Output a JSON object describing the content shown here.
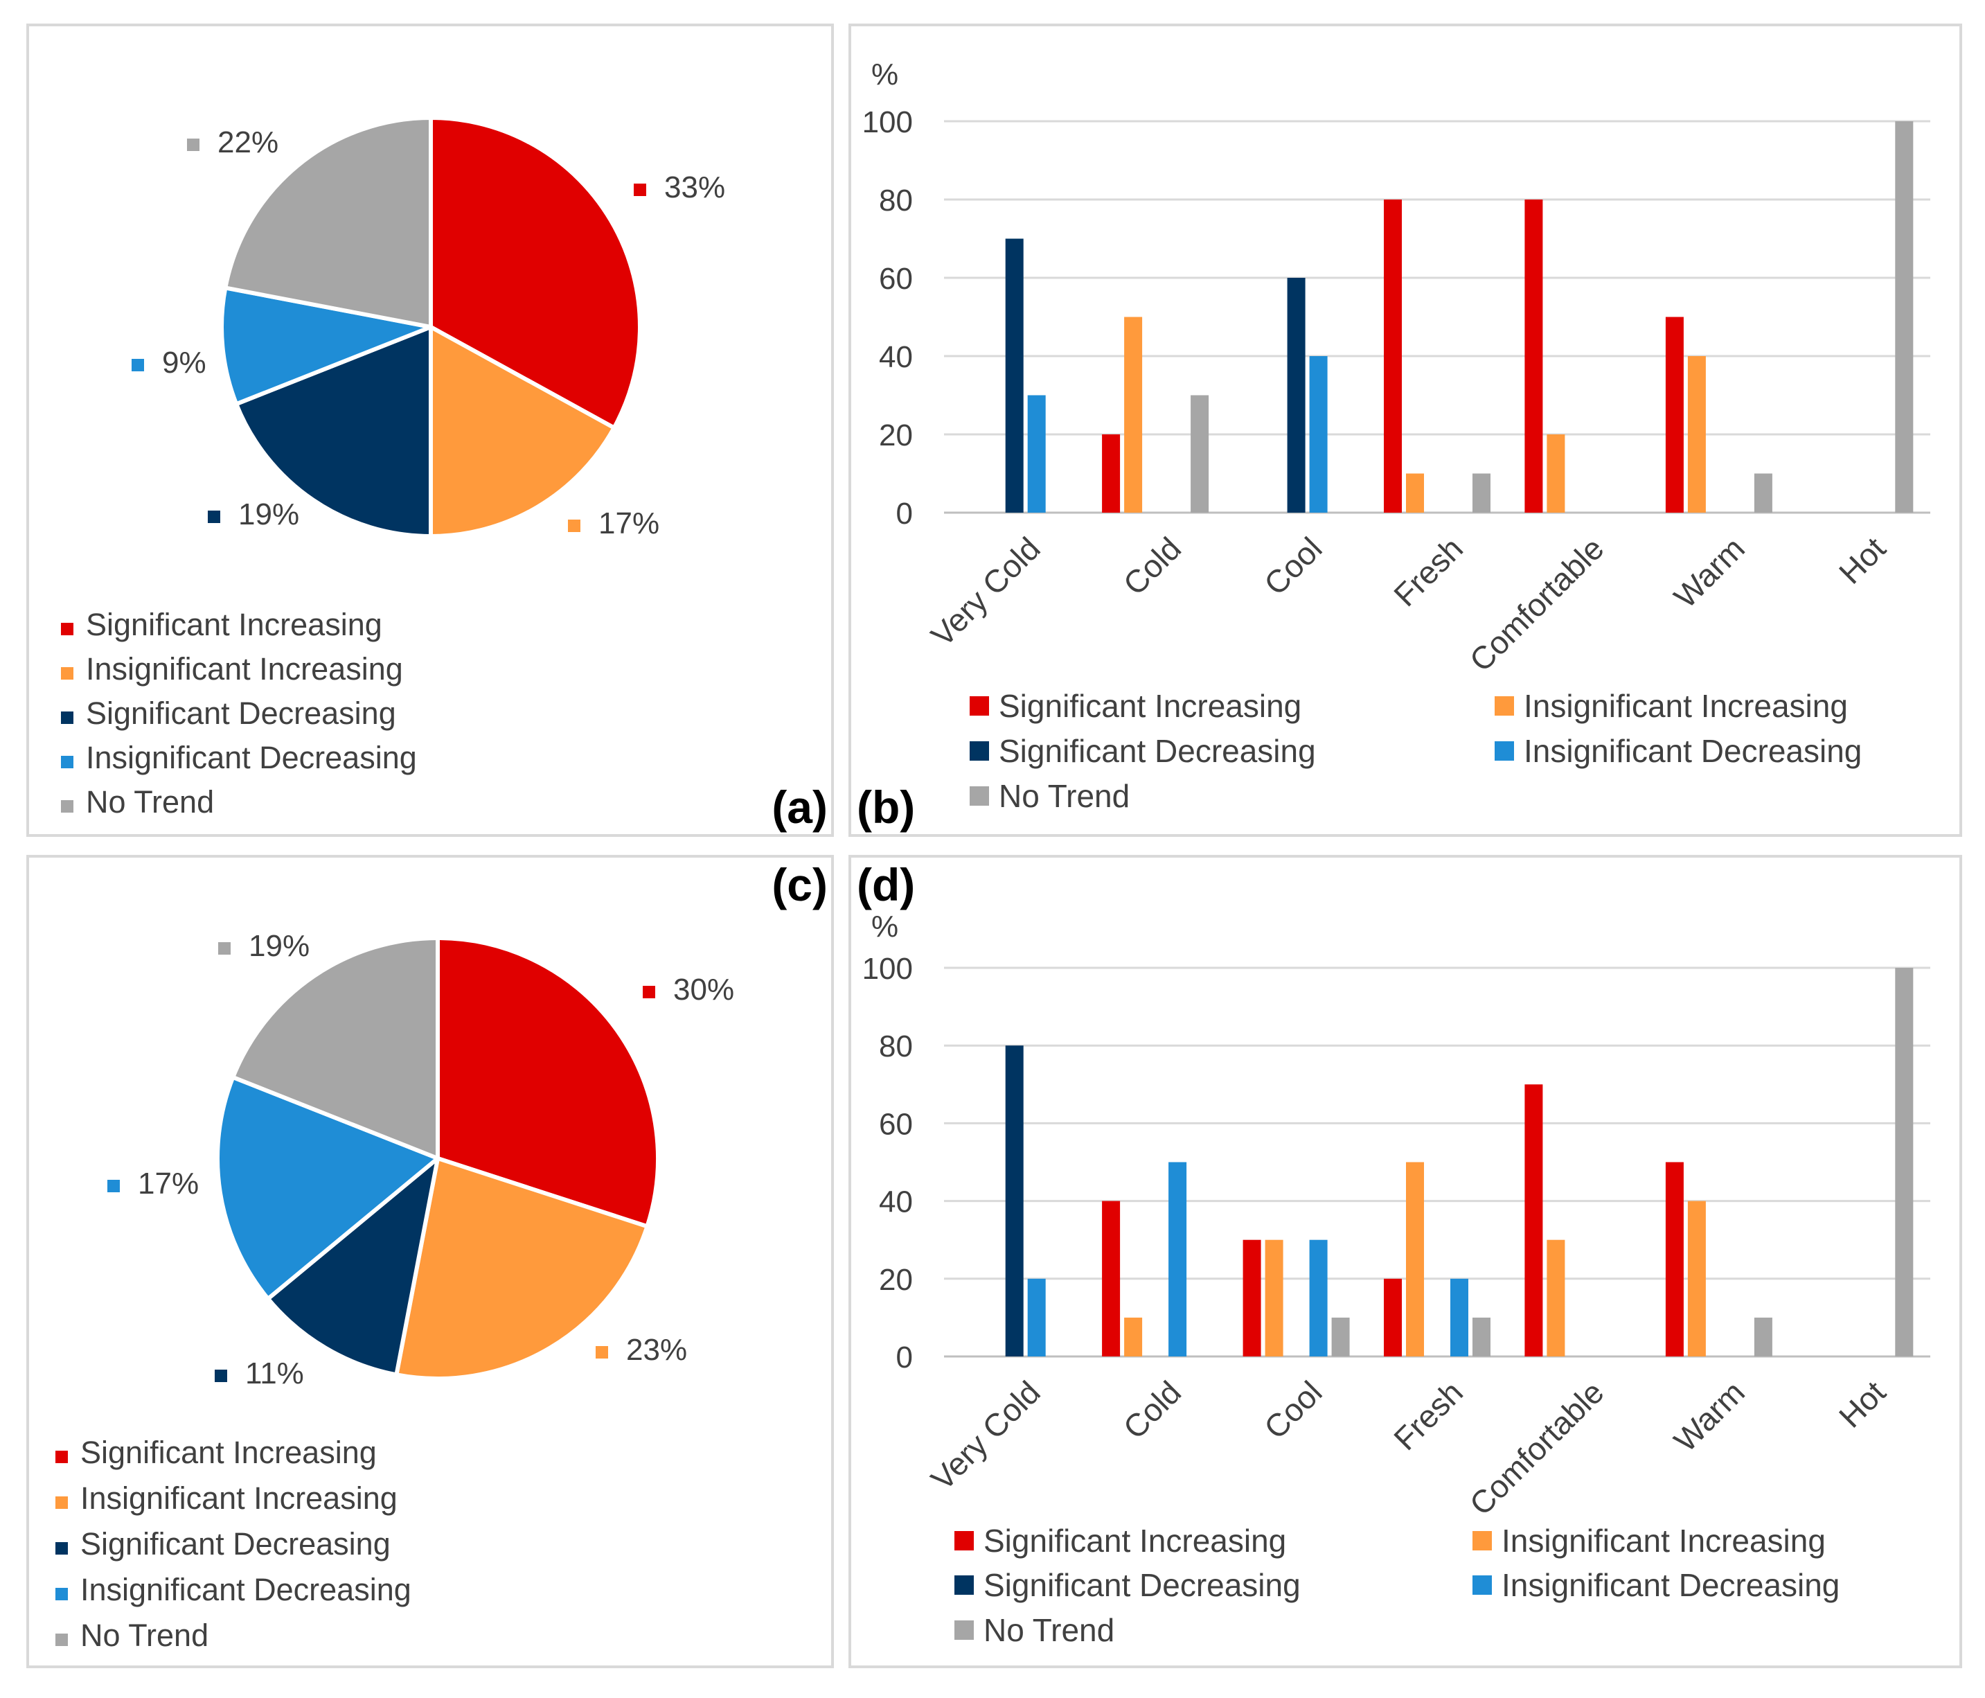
{
  "colors": {
    "significant_increasing": "#E00000",
    "insignificant_increasing": "#FF9A3C",
    "significant_decreasing": "#003461",
    "insignificant_decreasing": "#1F8DD6",
    "no_trend": "#A6A6A6",
    "grid": "#D9D9D9",
    "axis_text": "#404040",
    "frame": "#D9D9D9"
  },
  "legend_labels": [
    "Significant Increasing",
    "Insignificant Increasing",
    "Significant Decreasing",
    "Insignificant Decreasing",
    "No Trend"
  ],
  "chart_data": [
    {
      "id": "a",
      "type": "pie",
      "panel_label": "(a)",
      "slices": [
        {
          "name": "Significant Increasing",
          "value": 33,
          "label": "33%"
        },
        {
          "name": "Insignificant Increasing",
          "value": 17,
          "label": "17%"
        },
        {
          "name": "Significant Decreasing",
          "value": 19,
          "label": "19%"
        },
        {
          "name": "Insignificant Decreasing",
          "value": 9,
          "label": "9%"
        },
        {
          "name": "No Trend",
          "value": 22,
          "label": "22%"
        }
      ],
      "legend": [
        "Significant Increasing",
        "Insignificant Increasing",
        "Significant Decreasing",
        "Insignificant Decreasing",
        "No Trend"
      ]
    },
    {
      "id": "b",
      "type": "bar",
      "panel_label": "(b)",
      "ylabel": "%",
      "ylim": [
        0,
        100
      ],
      "yticks": [
        0,
        20,
        40,
        60,
        80,
        100
      ],
      "categories": [
        "Very Cold",
        "Cold",
        "Cool",
        "Fresh",
        "Comfortable",
        "Warm",
        "Hot"
      ],
      "series": [
        {
          "name": "Significant Increasing",
          "values": [
            0,
            20,
            0,
            80,
            80,
            50,
            0
          ]
        },
        {
          "name": "Insignificant Increasing",
          "values": [
            0,
            50,
            0,
            10,
            20,
            40,
            0
          ]
        },
        {
          "name": "Significant Decreasing",
          "values": [
            70,
            0,
            60,
            0,
            0,
            0,
            0
          ]
        },
        {
          "name": "Insignificant Decreasing",
          "values": [
            30,
            0,
            40,
            0,
            0,
            0,
            0
          ]
        },
        {
          "name": "No Trend",
          "values": [
            0,
            30,
            0,
            10,
            0,
            10,
            100
          ]
        }
      ]
    },
    {
      "id": "c",
      "type": "pie",
      "panel_label": "(c)",
      "slices": [
        {
          "name": "Significant Increasing",
          "value": 30,
          "label": "30%"
        },
        {
          "name": "Insignificant Increasing",
          "value": 23,
          "label": "23%"
        },
        {
          "name": "Significant Decreasing",
          "value": 11,
          "label": "11%"
        },
        {
          "name": "Insignificant Decreasing",
          "value": 17,
          "label": "17%"
        },
        {
          "name": "No Trend",
          "value": 19,
          "label": "19%"
        }
      ],
      "legend": [
        "Significant Increasing",
        "Insignificant Increasing",
        "Significant Decreasing",
        "Insignificant Decreasing",
        "No Trend"
      ]
    },
    {
      "id": "d",
      "type": "bar",
      "panel_label": "(d)",
      "ylabel": "%",
      "ylim": [
        0,
        100
      ],
      "yticks": [
        0,
        20,
        40,
        60,
        80,
        100
      ],
      "categories": [
        "Very Cold",
        "Cold",
        "Cool",
        "Fresh",
        "Comfortable",
        "Warm",
        "Hot"
      ],
      "series": [
        {
          "name": "Significant Increasing",
          "values": [
            0,
            40,
            30,
            20,
            70,
            50,
            0
          ]
        },
        {
          "name": "Insignificant Increasing",
          "values": [
            0,
            10,
            30,
            50,
            30,
            40,
            0
          ]
        },
        {
          "name": "Significant Decreasing",
          "values": [
            80,
            0,
            0,
            0,
            0,
            0,
            0
          ]
        },
        {
          "name": "Insignificant Decreasing",
          "values": [
            20,
            50,
            30,
            20,
            0,
            0,
            0
          ]
        },
        {
          "name": "No Trend",
          "values": [
            0,
            0,
            10,
            10,
            0,
            10,
            100
          ]
        }
      ]
    }
  ]
}
